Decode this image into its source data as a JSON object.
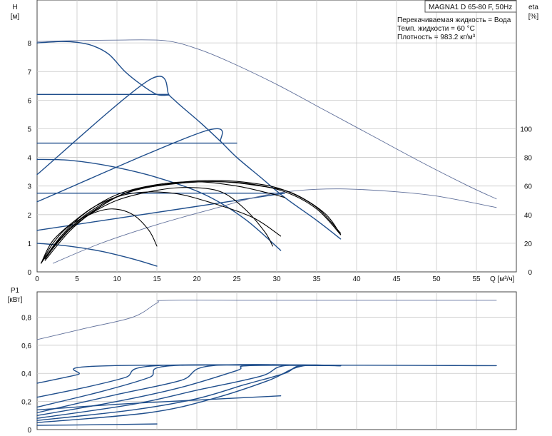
{
  "header": {
    "model": "MAGNA1 D 65-80 F, 50Hz",
    "medium": "Перекачиваемая жидкость = Вода",
    "temperature": "Темп. жидкости = 60 °C",
    "density": "Плотность = 983.2 кг/м³"
  },
  "colors": {
    "curve": "#1f4e8c",
    "efficiency": "#000000",
    "reference": "#5f6f9a",
    "grid": "#c8c8c8"
  },
  "chart_data": [
    {
      "type": "line",
      "name": "head",
      "ylabel_top": "H",
      "yunit": "[м]",
      "y2label": "eta",
      "y2unit": "[%]",
      "xlabel": "Q [м³/ч]",
      "xlim": [
        0,
        60
      ],
      "ylim": [
        0,
        9.5
      ],
      "y2lim": [
        0,
        190
      ],
      "x_ticks": [
        0,
        5,
        10,
        15,
        20,
        25,
        30,
        35,
        40,
        45,
        50,
        55
      ],
      "y_ticks": [
        0,
        1,
        2,
        3,
        4,
        5,
        6,
        7,
        8
      ],
      "y2_ticks": [
        0,
        20,
        40,
        60,
        80,
        100
      ],
      "grid": true,
      "series": [
        {
          "kind": "head",
          "style": "thin",
          "points": [
            [
              0,
              8.05
            ],
            [
              5,
              8.08
            ],
            [
              10,
              8.1
            ],
            [
              16,
              8.08
            ],
            [
              20,
              7.8
            ],
            [
              24,
              7.35
            ],
            [
              30,
              6.55
            ],
            [
              36,
              5.65
            ],
            [
              42,
              4.75
            ],
            [
              48,
              3.85
            ],
            [
              54,
              3.0
            ],
            [
              57.5,
              2.55
            ]
          ]
        },
        {
          "kind": "head",
          "style": "main",
          "points": [
            [
              0,
              8.0
            ],
            [
              3,
              8.05
            ],
            [
              5,
              8.02
            ],
            [
              7,
              7.9
            ],
            [
              9,
              7.6
            ],
            [
              11,
              7.0
            ],
            [
              13,
              6.55
            ],
            [
              15,
              6.2
            ],
            [
              16.5,
              6.18
            ]
          ]
        },
        {
          "kind": "head",
          "style": "main",
          "points": [
            [
              16.5,
              6.18
            ],
            [
              18,
              5.8
            ],
            [
              20.5,
              5.2
            ],
            [
              23,
              4.55
            ],
            [
              25,
              4.0
            ],
            [
              28,
              3.3
            ],
            [
              31,
              2.6
            ],
            [
              35,
              1.8
            ],
            [
              38,
              1.15
            ]
          ]
        },
        {
          "kind": "head",
          "style": "main",
          "points": [
            [
              0,
              6.2
            ],
            [
              16.5,
              6.2
            ]
          ]
        },
        {
          "kind": "head",
          "style": "main",
          "points": [
            [
              0,
              4.5
            ],
            [
              25,
              4.5
            ]
          ]
        },
        {
          "kind": "head",
          "style": "main",
          "points": [
            [
              0,
              2.75
            ],
            [
              31,
              2.75
            ]
          ]
        },
        {
          "kind": "head",
          "style": "main",
          "points": [
            [
              0,
              3.4
            ],
            [
              14,
              6.7
            ],
            [
              16.5,
              6.2
            ]
          ]
        },
        {
          "kind": "head",
          "style": "main",
          "points": [
            [
              0,
              2.45
            ],
            [
              20.8,
              4.9
            ],
            [
              23,
              4.55
            ]
          ]
        },
        {
          "kind": "head",
          "style": "main",
          "points": [
            [
              0,
              1.45
            ],
            [
              31,
              2.75
            ]
          ]
        },
        {
          "kind": "head",
          "style": "main",
          "points": [
            [
              0,
              3.93
            ],
            [
              4,
              3.9
            ],
            [
              9,
              3.7
            ],
            [
              15,
              3.3
            ],
            [
              21,
              2.7
            ],
            [
              26,
              1.85
            ],
            [
              30.5,
              0.75
            ]
          ]
        },
        {
          "kind": "head",
          "style": "main",
          "points": [
            [
              0,
              1.0
            ],
            [
              4,
              0.9
            ],
            [
              8,
              0.72
            ],
            [
              12,
              0.45
            ],
            [
              15,
              0.2
            ]
          ]
        },
        {
          "kind": "eta",
          "style": "thin",
          "points": [
            [
              2,
              0.3
            ],
            [
              8,
              1.0
            ],
            [
              15,
              1.65
            ],
            [
              22,
              2.2
            ],
            [
              28,
              2.65
            ],
            [
              33,
              2.85
            ],
            [
              38,
              2.9
            ],
            [
              44,
              2.82
            ],
            [
              50,
              2.65
            ],
            [
              57.5,
              2.25
            ]
          ]
        },
        {
          "kind": "eta",
          "style": "black",
          "points": [
            [
              0.5,
              0.3
            ],
            [
              2,
              1.0
            ],
            [
              4,
              1.6
            ],
            [
              7,
              2.05
            ],
            [
              9.5,
              2.2
            ],
            [
              12,
              2.0
            ],
            [
              14,
              1.45
            ],
            [
              15,
              0.9
            ]
          ]
        },
        {
          "kind": "eta",
          "style": "black",
          "points": [
            [
              0.5,
              0.3
            ],
            [
              2,
              1.1
            ],
            [
              5,
              1.85
            ],
            [
              8,
              2.4
            ],
            [
              12,
              2.75
            ],
            [
              17,
              2.75
            ],
            [
              22,
              2.4
            ],
            [
              27,
              1.9
            ],
            [
              30.5,
              1.25
            ]
          ]
        },
        {
          "kind": "eta",
          "style": "black",
          "points": [
            [
              0.5,
              0.3
            ],
            [
              3,
              1.25
            ],
            [
              6,
              2.05
            ],
            [
              10,
              2.7
            ],
            [
              15,
              3.05
            ],
            [
              20,
              3.15
            ],
            [
              25,
              3.0
            ],
            [
              29,
              2.75
            ],
            [
              31,
              2.6
            ]
          ]
        },
        {
          "kind": "eta",
          "style": "black",
          "points": [
            [
              1,
              0.4
            ],
            [
              4,
              1.4
            ],
            [
              7,
              2.1
            ],
            [
              11,
              2.75
            ],
            [
              16,
              3.05
            ],
            [
              21,
              3.15
            ],
            [
              26,
              3.1
            ],
            [
              31,
              2.8
            ],
            [
              35,
              2.2
            ],
            [
              38,
              1.3
            ]
          ]
        },
        {
          "kind": "eta",
          "style": "black",
          "points": [
            [
              1,
              0.45
            ],
            [
              4,
              1.5
            ],
            [
              8,
              2.3
            ],
            [
              12,
              2.85
            ],
            [
              17,
              3.1
            ],
            [
              22,
              3.2
            ],
            [
              27,
              3.1
            ],
            [
              31,
              2.85
            ],
            [
              35,
              2.25
            ],
            [
              38,
              1.35
            ]
          ]
        },
        {
          "kind": "eta",
          "style": "black",
          "points": [
            [
              1,
              0.5
            ],
            [
              5,
              1.75
            ],
            [
              9,
              2.5
            ],
            [
              13,
              2.9
            ],
            [
              18,
              3.1
            ],
            [
              23,
              3.15
            ],
            [
              28,
              3.0
            ],
            [
              32,
              2.75
            ],
            [
              36,
              2.05
            ],
            [
              38,
              1.3
            ]
          ]
        },
        {
          "kind": "eta",
          "style": "black",
          "points": [
            [
              1,
              0.5
            ],
            [
              3,
              1.2
            ],
            [
              6,
              1.9
            ],
            [
              10,
              2.5
            ],
            [
              15,
              2.85
            ],
            [
              19,
              2.95
            ],
            [
              23,
              2.8
            ],
            [
              26,
              2.2
            ],
            [
              28.5,
              1.4
            ],
            [
              29.5,
              0.9
            ]
          ]
        }
      ]
    },
    {
      "type": "line",
      "name": "power",
      "ylabel_top": "P1",
      "yunit": "[кВт]",
      "xlim": [
        0,
        60
      ],
      "ylim": [
        0,
        0.98
      ],
      "y_ticks": [
        "0",
        "0,2",
        "0,4",
        "0,6",
        "0,8"
      ],
      "y_tick_values": [
        0,
        0.2,
        0.4,
        0.6,
        0.8
      ],
      "grid": true,
      "series": [
        {
          "kind": "power",
          "style": "thin",
          "points": [
            [
              0,
              0.64
            ],
            [
              6,
              0.72
            ],
            [
              12,
              0.8
            ],
            [
              15,
              0.9
            ],
            [
              16.5,
              0.92
            ],
            [
              30,
              0.92
            ],
            [
              57.5,
              0.92
            ]
          ]
        },
        {
          "kind": "power",
          "style": "main",
          "points": [
            [
              0,
              0.33
            ],
            [
              5,
              0.39
            ],
            [
              9.5,
              0.455
            ],
            [
              57.5,
              0.455
            ]
          ]
        },
        {
          "kind": "power",
          "style": "main",
          "points": [
            [
              0,
              0.23
            ],
            [
              6,
              0.3
            ],
            [
              11,
              0.37
            ],
            [
              15,
              0.455
            ],
            [
              38,
              0.455
            ]
          ]
        },
        {
          "kind": "power",
          "style": "main",
          "points": [
            [
              0,
              0.16
            ],
            [
              8,
              0.27
            ],
            [
              14,
              0.37
            ],
            [
              17,
              0.455
            ],
            [
              38,
              0.455
            ]
          ]
        },
        {
          "kind": "power",
          "style": "main",
          "points": [
            [
              0,
              0.12
            ],
            [
              10,
              0.25
            ],
            [
              18,
              0.35
            ],
            [
              22,
              0.455
            ],
            [
              38,
              0.455
            ]
          ]
        },
        {
          "kind": "power",
          "style": "main",
          "points": [
            [
              0,
              0.1
            ],
            [
              10,
              0.2
            ],
            [
              18,
              0.3
            ],
            [
              25,
              0.42
            ],
            [
              26.5,
              0.455
            ],
            [
              38,
              0.455
            ]
          ]
        },
        {
          "kind": "power",
          "style": "main",
          "points": [
            [
              0,
              0.08
            ],
            [
              12,
              0.18
            ],
            [
              20,
              0.28
            ],
            [
              28,
              0.38
            ],
            [
              31,
              0.455
            ],
            [
              38,
              0.455
            ]
          ]
        },
        {
          "kind": "power",
          "style": "main",
          "points": [
            [
              0,
              0.065
            ],
            [
              12,
              0.14
            ],
            [
              20,
              0.22
            ],
            [
              26,
              0.32
            ],
            [
              31,
              0.4
            ],
            [
              33,
              0.455
            ],
            [
              38,
              0.455
            ]
          ]
        },
        {
          "kind": "power",
          "style": "main",
          "points": [
            [
              0,
              0.05
            ],
            [
              14,
              0.12
            ],
            [
              22,
              0.22
            ],
            [
              29,
              0.35
            ],
            [
              33,
              0.45
            ],
            [
              38,
              0.455
            ]
          ]
        },
        {
          "kind": "power",
          "style": "main",
          "points": [
            [
              0,
              0.14
            ],
            [
              10,
              0.18
            ],
            [
              20,
              0.21
            ],
            [
              30.5,
              0.24
            ]
          ]
        },
        {
          "kind": "power",
          "style": "main",
          "points": [
            [
              0,
              0.03
            ],
            [
              8,
              0.035
            ],
            [
              15,
              0.04
            ]
          ]
        }
      ]
    }
  ]
}
